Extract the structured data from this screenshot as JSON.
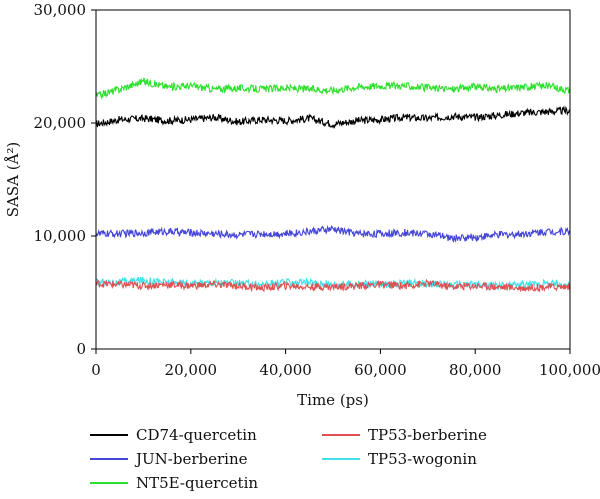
{
  "chart_data": {
    "type": "line",
    "title": "",
    "xlabel": "Time (ps)",
    "ylabel": "SASA (Å²)",
    "xlim": [
      0,
      100000
    ],
    "ylim": [
      0,
      30000
    ],
    "x_ticks": [
      0,
      20000,
      40000,
      60000,
      80000,
      100000
    ],
    "x_tick_labels": [
      "0",
      "20,000",
      "40,000",
      "60,000",
      "80,000",
      "100,000"
    ],
    "y_ticks": [
      0,
      10000,
      20000,
      30000
    ],
    "y_tick_labels": [
      "0",
      "10,000",
      "20,000",
      "30,000"
    ],
    "grid": false,
    "legend_position": "bottom",
    "series": [
      {
        "name": "CD74-quercetin",
        "color": "#000000",
        "x": [
          0,
          5000,
          10000,
          15000,
          20000,
          25000,
          30000,
          35000,
          40000,
          45000,
          50000,
          55000,
          60000,
          65000,
          70000,
          75000,
          80000,
          85000,
          90000,
          95000,
          100000
        ],
        "y": [
          19900,
          20300,
          20400,
          20200,
          20300,
          20500,
          20100,
          20300,
          20200,
          20400,
          19900,
          20200,
          20300,
          20500,
          20400,
          20600,
          20500,
          20700,
          20900,
          21000,
          21100
        ]
      },
      {
        "name": "JUN-berberine",
        "color": "#4545d8",
        "x": [
          0,
          5000,
          10000,
          15000,
          20000,
          25000,
          30000,
          35000,
          40000,
          45000,
          50000,
          55000,
          60000,
          65000,
          70000,
          75000,
          80000,
          85000,
          90000,
          95000,
          100000
        ],
        "y": [
          10200,
          10200,
          10300,
          10400,
          10300,
          10200,
          10100,
          10200,
          10200,
          10400,
          10600,
          10200,
          10200,
          10300,
          10200,
          9800,
          9900,
          10100,
          10200,
          10400,
          10400
        ]
      },
      {
        "name": "NT5E-quercetin",
        "color": "#2ee02e",
        "x": [
          0,
          5000,
          10000,
          15000,
          20000,
          25000,
          30000,
          35000,
          40000,
          45000,
          50000,
          55000,
          60000,
          65000,
          70000,
          75000,
          80000,
          85000,
          90000,
          95000,
          100000
        ],
        "y": [
          22400,
          23000,
          23700,
          23200,
          23300,
          23000,
          23100,
          23000,
          23100,
          23000,
          22900,
          23200,
          23300,
          23300,
          23100,
          23000,
          23200,
          23000,
          23200,
          23300,
          22900
        ]
      },
      {
        "name": "TP53-berberine",
        "color": "#e05050",
        "x": [
          0,
          5000,
          10000,
          15000,
          20000,
          25000,
          30000,
          35000,
          40000,
          45000,
          50000,
          55000,
          60000,
          65000,
          70000,
          75000,
          80000,
          85000,
          90000,
          95000,
          100000
        ],
        "y": [
          5800,
          5700,
          5600,
          5700,
          5600,
          5700,
          5600,
          5400,
          5600,
          5500,
          5500,
          5600,
          5700,
          5600,
          5800,
          5500,
          5600,
          5500,
          5400,
          5500,
          5500
        ]
      },
      {
        "name": "TP53-wogonin",
        "color": "#3fe0e8",
        "x": [
          0,
          5000,
          10000,
          15000,
          20000,
          25000,
          30000,
          35000,
          40000,
          45000,
          50000,
          55000,
          60000,
          65000,
          70000,
          75000,
          80000,
          85000,
          90000,
          95000,
          100000
        ],
        "y": [
          5900,
          5900,
          6100,
          5900,
          5800,
          5900,
          5800,
          5700,
          5900,
          5900,
          5700,
          5800,
          5700,
          5800,
          5800,
          5700,
          5700,
          5600,
          5700,
          5800,
          5700
        ]
      }
    ]
  }
}
